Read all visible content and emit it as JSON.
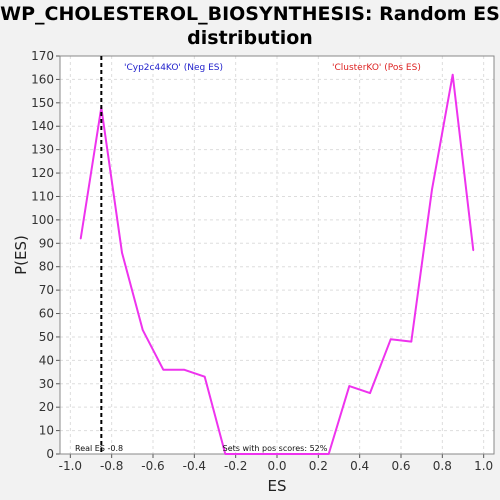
{
  "chart_data": {
    "type": "line",
    "title": "WP_CHOLESTEROL_BIOSYNTHESIS: Random ES distribution",
    "xlabel": "ES",
    "ylabel": "P(ES)",
    "xlim": [
      -1.05,
      1.05
    ],
    "ylim": [
      0,
      170
    ],
    "x_ticks": [
      "-1.0",
      "-0.8",
      "-0.6",
      "-0.4",
      "-0.2",
      "0.0",
      "0.2",
      "0.4",
      "0.6",
      "0.8",
      "1.0"
    ],
    "y_ticks": [
      "0",
      "10",
      "20",
      "30",
      "40",
      "50",
      "60",
      "70",
      "80",
      "90",
      "100",
      "110",
      "120",
      "130",
      "140",
      "150",
      "160",
      "170"
    ],
    "grid": true,
    "series": [
      {
        "color": "#ee33ee",
        "x": [
          -0.95,
          -0.85,
          -0.75,
          -0.65,
          -0.55,
          -0.45,
          -0.35,
          -0.25,
          -0.15,
          -0.05,
          0.05,
          0.15,
          0.25,
          0.35,
          0.45,
          0.55,
          0.65,
          0.75,
          0.85,
          0.95
        ],
        "y": [
          92,
          148,
          86,
          53,
          36,
          36,
          33,
          0,
          0,
          0,
          0,
          0,
          0,
          29,
          26,
          49,
          48,
          113,
          162,
          87
        ]
      }
    ],
    "real_es": {
      "value": -0.85,
      "label": "Real ES -0.8",
      "line_style": "dashed",
      "color": "#000000"
    },
    "legend": {
      "neg_label": "'Cyp2c44KO' (Neg ES)",
      "neg_color": "#2222cc",
      "pos_label": "'ClusterKO' (Pos ES)",
      "pos_color": "#dd2222"
    },
    "annotation": "Sets with pos scores: 52%"
  }
}
